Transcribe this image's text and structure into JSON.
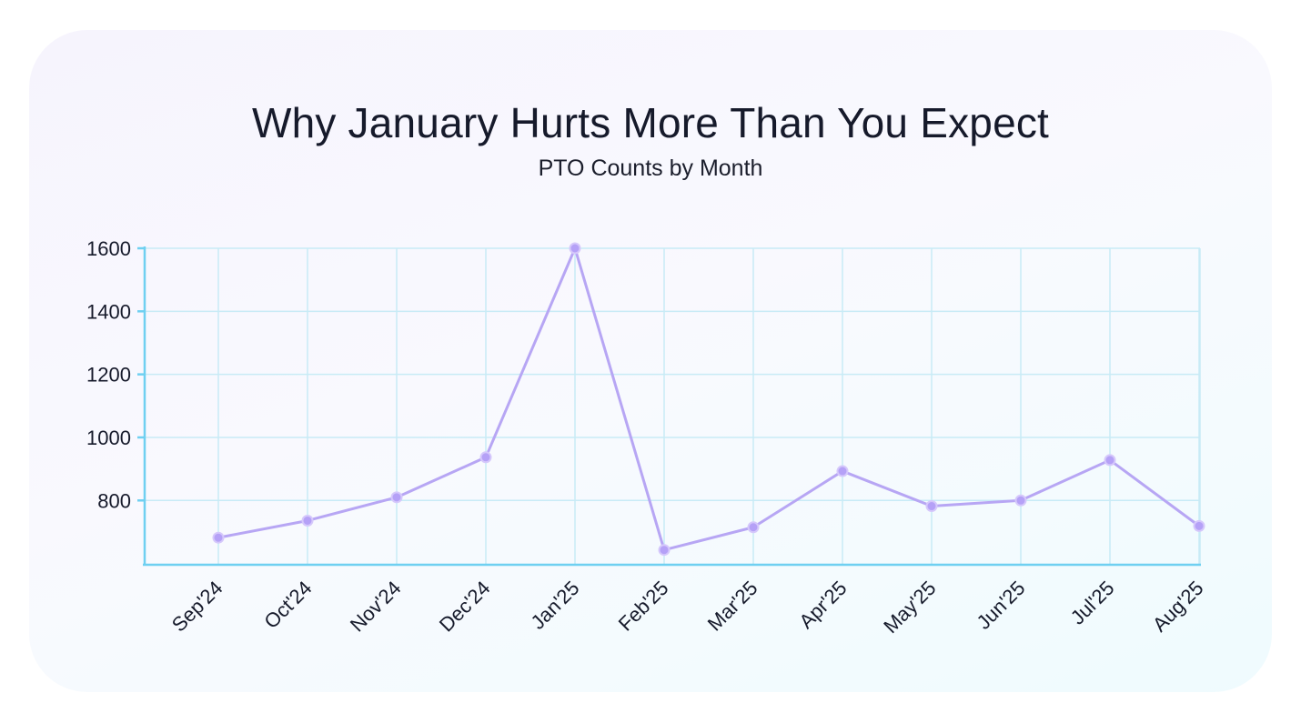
{
  "chart_data": {
    "type": "line",
    "title": "Why January Hurts More Than You Expect",
    "subtitle": "PTO Counts by Month",
    "xlabel": "",
    "ylabel": "",
    "categories": [
      "Sep'24",
      "Oct'24",
      "Nov'24",
      "Dec'24",
      "Jan'25",
      "Feb'25",
      "Mar'25",
      "Apr'25",
      "May'25",
      "Jun'25",
      "Jul'25",
      "Aug'25"
    ],
    "series": [
      {
        "values": [
          682,
          736,
          810,
          937,
          1600,
          643,
          715,
          893,
          782,
          800,
          928,
          719
        ]
      }
    ],
    "y_ticks": [
      800,
      1000,
      1200,
      1400,
      1600
    ],
    "ylim": [
      596,
      1600
    ],
    "grid": true,
    "legend": "none",
    "colors": {
      "line": "#b7a6f4",
      "point": "#b5a1f7",
      "grid": "#c8ebf6",
      "axis": "#6fd0f1"
    }
  }
}
